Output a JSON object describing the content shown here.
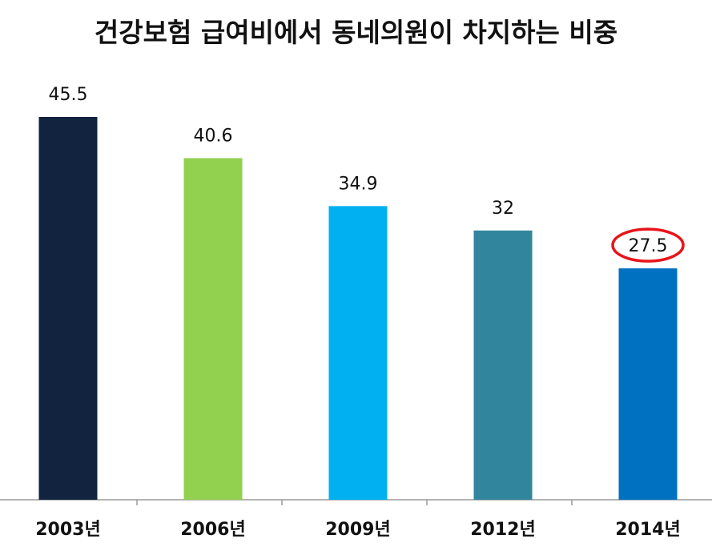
{
  "chart_data": {
    "type": "bar",
    "title": "건강보험 급여비에서 동네의원이 차지하는 비중",
    "categories": [
      "2003년",
      "2006년",
      "2009년",
      "2012년",
      "2014년"
    ],
    "values": [
      45.5,
      40.6,
      34.9,
      32,
      27.5
    ],
    "value_labels": [
      "45.5",
      "40.6",
      "34.9",
      "32",
      "27.5"
    ],
    "colors": [
      "#12233f",
      "#92d050",
      "#00b0f0",
      "#31859c",
      "#0070c0"
    ],
    "highlight_index": 4,
    "highlight_color": "#e8141b",
    "ylim": [
      0,
      50
    ],
    "grid": false,
    "legend": "none",
    "xlabel": "",
    "ylabel": ""
  }
}
